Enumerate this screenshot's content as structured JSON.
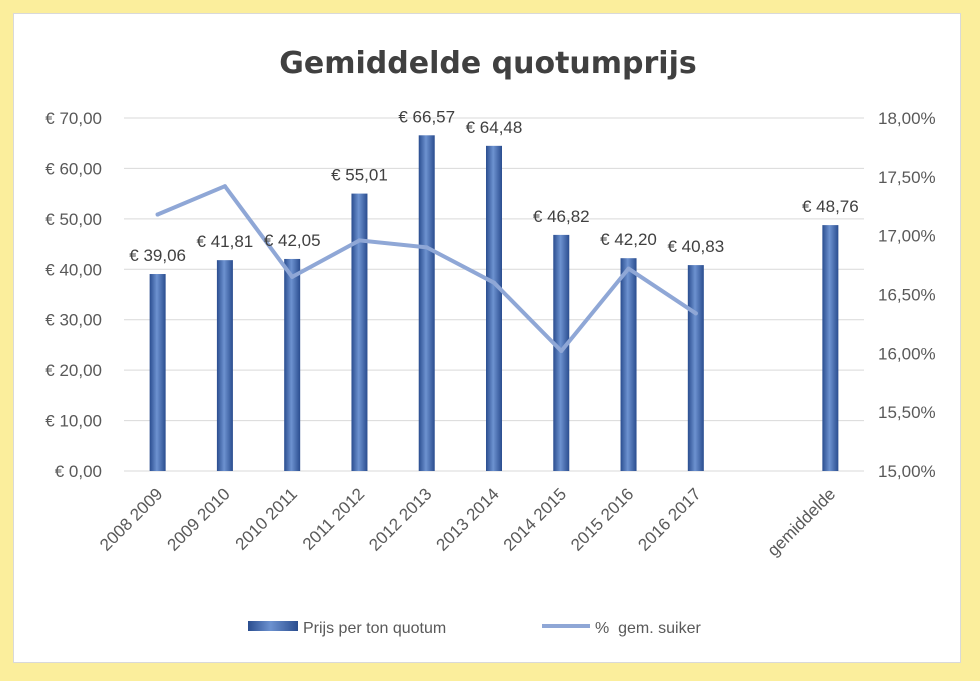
{
  "colors": {
    "page_background": "#fbee9c",
    "bar": "#3b64ac",
    "bar_light": "#6d92d0",
    "bar_dark": "#2a4d8f",
    "line": "#8fa7d6",
    "grid": "#d9d9d9"
  },
  "chart_data": {
    "type": "bar",
    "title": "Gemiddelde quotumprijs",
    "categories": [
      "2008 2009",
      "2009 2010",
      "2010 2011",
      "2011 2012",
      "2012 2013",
      "2013 2014",
      "2014 2015",
      "2015 2016",
      "2016 2017",
      "",
      "gemiddelde"
    ],
    "series": [
      {
        "name": "Prijs per ton quotum",
        "type": "bar",
        "axis": "left",
        "values": [
          39.06,
          41.81,
          42.05,
          55.01,
          66.57,
          64.48,
          46.82,
          42.2,
          40.83,
          null,
          48.76
        ],
        "labels": [
          "€ 39,06",
          "€ 41,81",
          "€ 42,05",
          "€ 55,01",
          "€ 66,57",
          "€ 64,48",
          "€ 46,82",
          "€ 42,20",
          "€ 40,83",
          "",
          "€ 48,76"
        ]
      },
      {
        "name": "%  gem. suiker",
        "type": "line",
        "axis": "right",
        "values": [
          17.18,
          17.42,
          16.65,
          16.96,
          16.9,
          16.6,
          16.02,
          16.72,
          16.34,
          null,
          null
        ]
      }
    ],
    "left_axis": {
      "ylim": [
        0,
        70
      ],
      "ticks": [
        0,
        10,
        20,
        30,
        40,
        50,
        60,
        70
      ],
      "tick_labels": [
        "€ 0,00",
        "€ 10,00",
        "€ 20,00",
        "€ 30,00",
        "€ 40,00",
        "€ 50,00",
        "€ 60,00",
        "€ 70,00"
      ]
    },
    "right_axis": {
      "ylim": [
        15,
        18
      ],
      "ticks": [
        15,
        15.5,
        16,
        16.5,
        17,
        17.5,
        18
      ],
      "tick_labels": [
        "15,00%",
        "15,50%",
        "16,00%",
        "16,50%",
        "17,00%",
        "17,50%",
        "18,00%"
      ]
    },
    "grid": true,
    "legend_position": "bottom"
  }
}
